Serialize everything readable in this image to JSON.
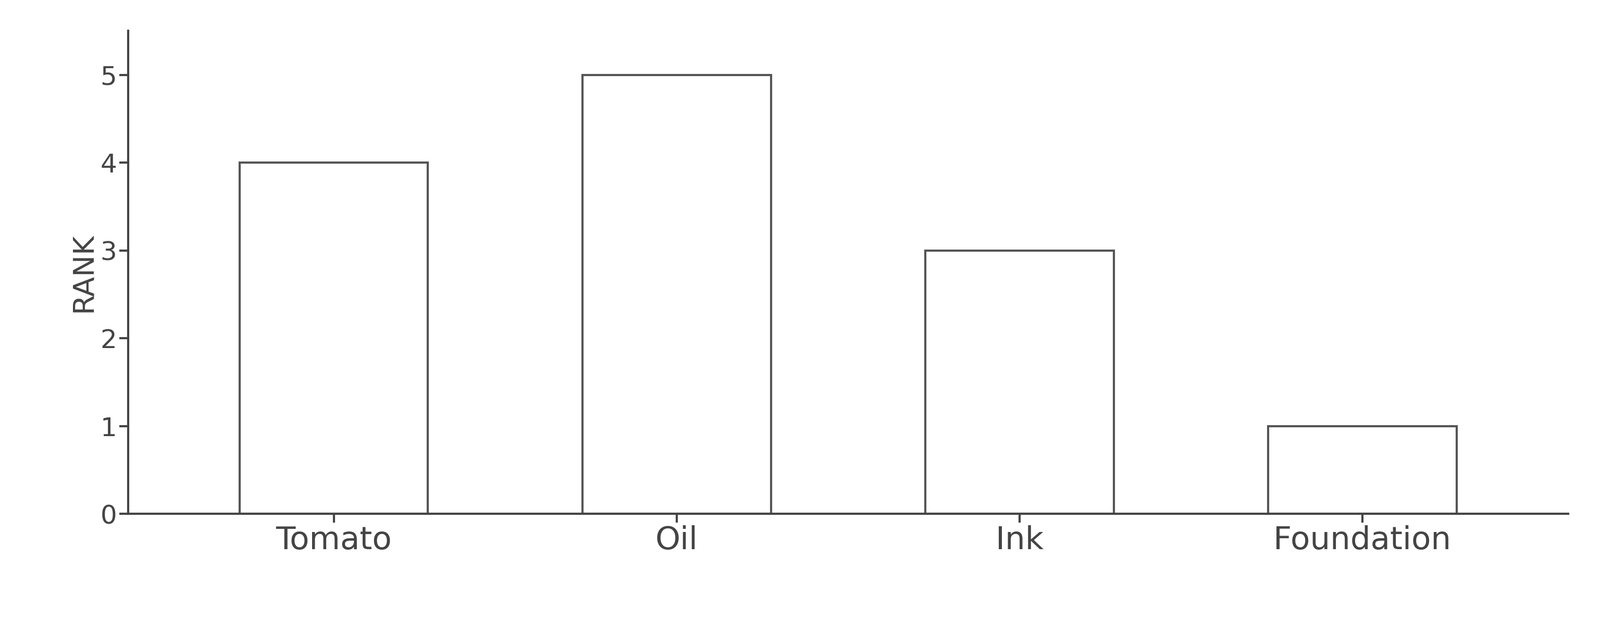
{
  "chart_data": {
    "type": "bar",
    "y_label": "RANK",
    "categories": [
      "Tomato",
      "Oil",
      "Ink",
      "Foundation"
    ],
    "values": [
      4,
      5,
      3,
      1
    ],
    "color": "#ffffff",
    "ylim": [
      0,
      5.5
    ],
    "yticks": [
      0,
      1,
      2,
      3,
      4,
      5
    ],
    "grid": false
  }
}
